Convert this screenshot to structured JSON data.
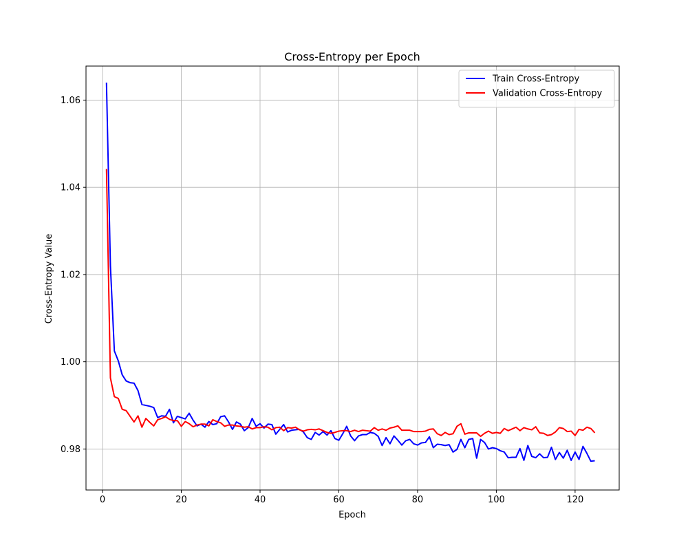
{
  "chart_data": {
    "type": "line",
    "title": "Cross-Entropy per Epoch",
    "xlabel": "Epoch",
    "ylabel": "Cross-Entropy Value",
    "xlim": [
      -4.2,
      131.2
    ],
    "ylim": [
      0.9706,
      1.0678
    ],
    "xticks": [
      0,
      20,
      40,
      60,
      80,
      100,
      120
    ],
    "yticks": [
      0.98,
      1.0,
      1.02,
      1.04,
      1.06
    ],
    "ytick_labels": [
      "0.98",
      "1.00",
      "1.02",
      "1.04",
      "1.06"
    ],
    "grid": true,
    "legend_position": "top-right",
    "x": [
      1,
      2,
      3,
      4,
      5,
      6,
      7,
      8,
      9,
      10,
      11,
      12,
      13,
      14,
      15,
      16,
      17,
      18,
      19,
      20,
      21,
      22,
      23,
      24,
      25,
      26,
      27,
      28,
      29,
      30,
      31,
      32,
      33,
      34,
      35,
      36,
      37,
      38,
      39,
      40,
      41,
      42,
      43,
      44,
      45,
      46,
      47,
      48,
      49,
      50,
      51,
      52,
      53,
      54,
      55,
      56,
      57,
      58,
      59,
      60,
      61,
      62,
      63,
      64,
      65,
      66,
      67,
      68,
      69,
      70,
      71,
      72,
      73,
      74,
      75,
      76,
      77,
      78,
      79,
      80,
      81,
      82,
      83,
      84,
      85,
      86,
      87,
      88,
      89,
      90,
      91,
      92,
      93,
      94,
      95,
      96,
      97,
      98,
      99,
      100,
      101,
      102,
      103,
      104,
      105,
      106,
      107,
      108,
      109,
      110,
      111,
      112,
      113,
      114,
      115,
      116,
      117,
      118,
      119,
      120,
      121,
      122,
      123,
      124,
      125
    ],
    "series": [
      {
        "name": "Train Cross-Entropy",
        "color": "#0000ff",
        "values": [
          1.064,
          1.022,
          1.0025,
          1.0002,
          0.997,
          0.9956,
          0.9952,
          0.9951,
          0.9934,
          0.9902,
          0.99,
          0.9898,
          0.9895,
          0.9872,
          0.9876,
          0.9875,
          0.9891,
          0.986,
          0.9875,
          0.9872,
          0.9869,
          0.9882,
          0.9866,
          0.9853,
          0.9857,
          0.985,
          0.9863,
          0.9856,
          0.9858,
          0.9874,
          0.9876,
          0.9862,
          0.9845,
          0.9862,
          0.9857,
          0.9842,
          0.9849,
          0.987,
          0.9852,
          0.9858,
          0.9848,
          0.9857,
          0.9856,
          0.9834,
          0.9845,
          0.9856,
          0.9839,
          0.9843,
          0.9844,
          0.9845,
          0.9839,
          0.9826,
          0.9822,
          0.9838,
          0.9832,
          0.984,
          0.9832,
          0.9842,
          0.9824,
          0.982,
          0.9835,
          0.9852,
          0.983,
          0.9819,
          0.983,
          0.9833,
          0.9833,
          0.9838,
          0.9836,
          0.9829,
          0.9808,
          0.9826,
          0.9812,
          0.983,
          0.982,
          0.9809,
          0.9819,
          0.9822,
          0.9812,
          0.9809,
          0.9814,
          0.9815,
          0.9828,
          0.9803,
          0.9811,
          0.981,
          0.9808,
          0.981,
          0.9793,
          0.9799,
          0.9822,
          0.9803,
          0.9822,
          0.9824,
          0.9779,
          0.9822,
          0.9815,
          0.98,
          0.9803,
          0.9801,
          0.9796,
          0.9793,
          0.978,
          0.9781,
          0.9781,
          0.9801,
          0.9774,
          0.9808,
          0.9783,
          0.978,
          0.9789,
          0.978,
          0.9781,
          0.9804,
          0.9776,
          0.9792,
          0.9779,
          0.9797,
          0.9774,
          0.9793,
          0.9776,
          0.9806,
          0.979,
          0.9772,
          0.9773
        ]
      },
      {
        "name": "Validation Cross-Entropy",
        "color": "#ff0000",
        "values": [
          1.0442,
          0.9963,
          0.992,
          0.9916,
          0.9891,
          0.9888,
          0.9875,
          0.9862,
          0.9876,
          0.985,
          0.987,
          0.9861,
          0.9853,
          0.9867,
          0.987,
          0.9874,
          0.9868,
          0.9865,
          0.9865,
          0.9852,
          0.9863,
          0.9858,
          0.9851,
          0.9855,
          0.9857,
          0.9857,
          0.9853,
          0.9867,
          0.9863,
          0.986,
          0.9852,
          0.9855,
          0.9855,
          0.9853,
          0.9852,
          0.985,
          0.9851,
          0.9846,
          0.9849,
          0.9849,
          0.9851,
          0.985,
          0.9844,
          0.9849,
          0.985,
          0.9842,
          0.9849,
          0.9848,
          0.985,
          0.9844,
          0.9841,
          0.9844,
          0.9845,
          0.9844,
          0.9846,
          0.9842,
          0.9838,
          0.9836,
          0.9838,
          0.9841,
          0.9842,
          0.9842,
          0.984,
          0.9843,
          0.984,
          0.9843,
          0.9842,
          0.9841,
          0.9849,
          0.9843,
          0.9846,
          0.9843,
          0.9848,
          0.985,
          0.9853,
          0.9843,
          0.9843,
          0.9843,
          0.984,
          0.984,
          0.984,
          0.9841,
          0.9845,
          0.9846,
          0.9835,
          0.9831,
          0.9838,
          0.9833,
          0.9835,
          0.9852,
          0.9858,
          0.9834,
          0.9837,
          0.9837,
          0.9837,
          0.9829,
          0.9836,
          0.9841,
          0.9836,
          0.9838,
          0.9836,
          0.9847,
          0.9842,
          0.9846,
          0.985,
          0.9842,
          0.9849,
          0.9846,
          0.9844,
          0.9851,
          0.9837,
          0.9836,
          0.9831,
          0.9833,
          0.9839,
          0.9849,
          0.9847,
          0.984,
          0.9841,
          0.9831,
          0.9845,
          0.9843,
          0.985,
          0.9847,
          0.9837
        ]
      }
    ]
  }
}
